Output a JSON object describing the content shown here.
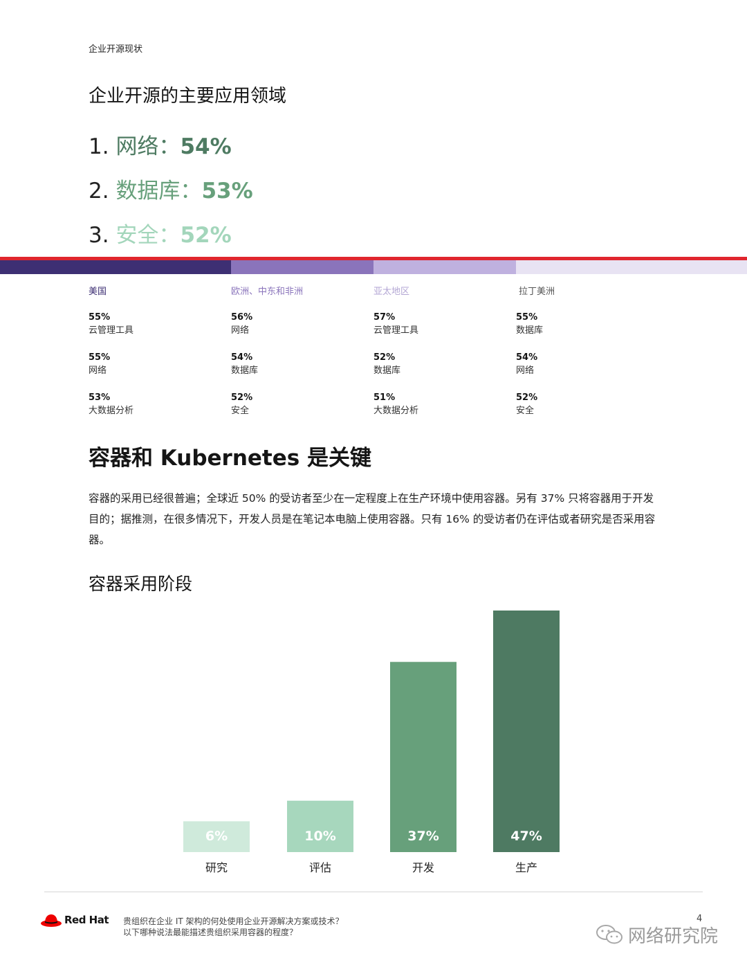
{
  "header": {
    "label": "企业开源现状"
  },
  "top_areas": {
    "title": "企业开源的主要应用领域",
    "items": [
      {
        "num": "1.",
        "name": "网络：",
        "pct": "54%",
        "color": "#4e7b62"
      },
      {
        "num": "2.",
        "name": "数据库：",
        "pct": "53%",
        "color": "#67a07b"
      },
      {
        "num": "3.",
        "name": "安全：",
        "pct": "52%",
        "color": "#a3d6bb"
      }
    ]
  },
  "band_colors": [
    "#3d2f73",
    "#8a74bb",
    "#bfb1df",
    "#e8e3f3"
  ],
  "regions": [
    {
      "name": "美国",
      "color": "#3d2f73",
      "stats": [
        {
          "pct": "55%",
          "label": "云管理工具"
        },
        {
          "pct": "55%",
          "label": "网络"
        },
        {
          "pct": "53%",
          "label": "大数据分析"
        }
      ]
    },
    {
      "name": "欧洲、中东和非洲",
      "color": "#8a74bb",
      "stats": [
        {
          "pct": "56%",
          "label": "网络"
        },
        {
          "pct": "54%",
          "label": "数据库"
        },
        {
          "pct": "52%",
          "label": "安全"
        }
      ]
    },
    {
      "name": "亚太地区",
      "color": "#b3a6d4",
      "stats": [
        {
          "pct": "57%",
          "label": "云管理工具"
        },
        {
          "pct": "52%",
          "label": "数据库"
        },
        {
          "pct": "51%",
          "label": "大数据分析"
        }
      ]
    },
    {
      "name": "拉丁美洲",
      "color": "#555555",
      "stats": [
        {
          "pct": "55%",
          "label": "数据库"
        },
        {
          "pct": "54%",
          "label": "网络"
        },
        {
          "pct": "52%",
          "label": "安全"
        }
      ]
    }
  ],
  "containers": {
    "heading": "容器和 Kubernetes 是关键",
    "paragraph": "容器的采用已经很普遍；全球近 50% 的受访者至少在一定程度上在生产环境中使用容器。另有 37% 只将容器用于开发目的；据推测，在很多情况下，开发人员是在笔记本电脑上使用容器。只有 16% 的受访者仍在评估或者研究是否采用容器。",
    "chart_title": "容器采用阶段"
  },
  "chart_data": {
    "type": "bar",
    "title": "容器采用阶段",
    "categories": [
      "研究",
      "评估",
      "开发",
      "生产"
    ],
    "values": [
      6,
      10,
      37,
      47
    ],
    "value_labels": [
      "6%",
      "10%",
      "37%",
      "47%"
    ],
    "colors": [
      "#cfeadb",
      "#a7d7bd",
      "#67a07b",
      "#4e7a62"
    ],
    "ylim": [
      0,
      47
    ],
    "grid": false,
    "legend": "none"
  },
  "footer": {
    "brand": "Red Hat",
    "question_1": "贵组织在企业 IT 架构的何处使用企业开源解决方案或技术？",
    "question_2": "以下哪种说法最能描述贵组织采用容器的程度？",
    "page_number": "4",
    "watermark": "网络研究院"
  }
}
